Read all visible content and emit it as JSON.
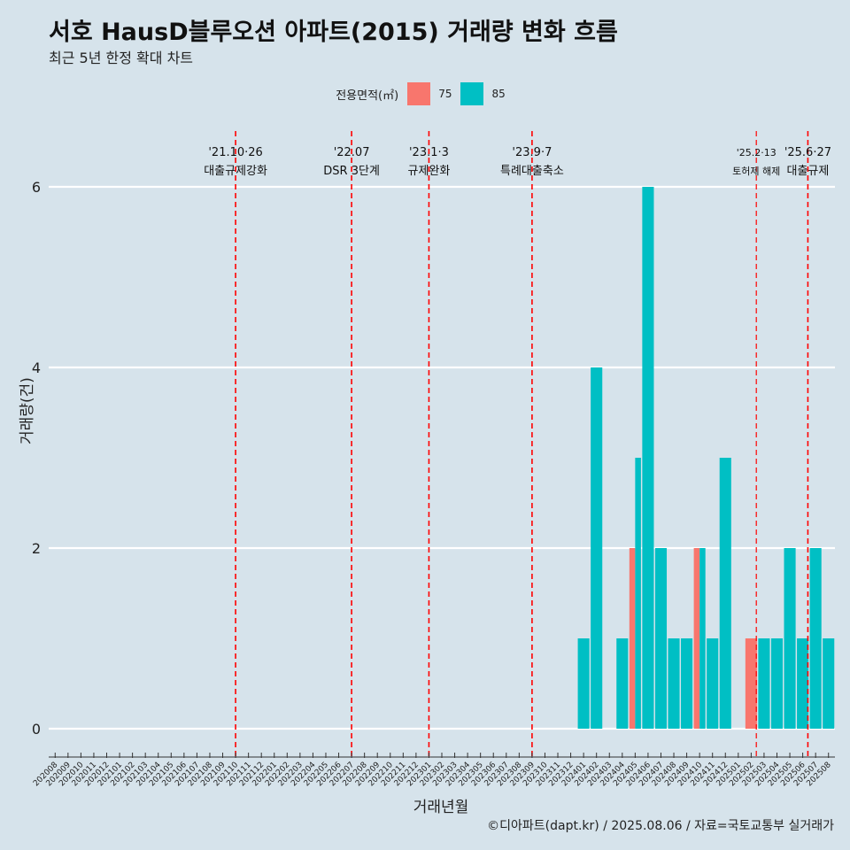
{
  "title": "서호 HausD블루오션 아파트(2015) 거래량 변화 흐름",
  "subtitle": "최근 5년 한정 확대 차트",
  "legend": {
    "title": "전용면적(㎡)",
    "items": [
      {
        "label": "75",
        "color": "#f8766d"
      },
      {
        "label": "85",
        "color": "#00bfc4"
      }
    ]
  },
  "caption": "©디아파트(dapt.kr) / 2025.08.06 / 자료=국토교통부 실거래가",
  "chart_data": {
    "type": "bar",
    "title": "서호 HausD블루오션 아파트(2015) 거래량 변화 흐름",
    "subtitle": "최근 5년 한정 확대 차트",
    "xlabel": "거래년월",
    "ylabel": "거래량(건)",
    "ylim": [
      -0.6,
      6.6
    ],
    "yticks": [
      0,
      2,
      4,
      6
    ],
    "categories": [
      "202008",
      "202009",
      "202010",
      "202011",
      "202012",
      "202101",
      "202102",
      "202103",
      "202104",
      "202105",
      "202106",
      "202107",
      "202108",
      "202109",
      "202110",
      "202111",
      "202112",
      "202201",
      "202202",
      "202203",
      "202204",
      "202205",
      "202206",
      "202207",
      "202208",
      "202209",
      "202210",
      "202211",
      "202212",
      "202301",
      "202302",
      "202303",
      "202304",
      "202305",
      "202306",
      "202307",
      "202308",
      "202309",
      "202310",
      "202311",
      "202312",
      "202401",
      "202402",
      "202403",
      "202404",
      "202405",
      "202406",
      "202407",
      "202408",
      "202409",
      "202410",
      "202411",
      "202412",
      "202501",
      "202502",
      "202503",
      "202504",
      "202505",
      "202506",
      "202507",
      "202508"
    ],
    "bars": [
      {
        "month": "202401",
        "series": "85",
        "value": 1,
        "pos": "full"
      },
      {
        "month": "202402",
        "series": "85",
        "value": 4,
        "pos": "full"
      },
      {
        "month": "202404",
        "series": "85",
        "value": 1,
        "pos": "full"
      },
      {
        "month": "202405",
        "series": "75",
        "value": 2,
        "pos": "left"
      },
      {
        "month": "202405",
        "series": "85",
        "value": 3,
        "pos": "right"
      },
      {
        "month": "202406",
        "series": "85",
        "value": 6,
        "pos": "full"
      },
      {
        "month": "202407",
        "series": "85",
        "value": 2,
        "pos": "full"
      },
      {
        "month": "202408",
        "series": "85",
        "value": 1,
        "pos": "full"
      },
      {
        "month": "202409",
        "series": "85",
        "value": 1,
        "pos": "full"
      },
      {
        "month": "202410",
        "series": "75",
        "value": 2,
        "pos": "left"
      },
      {
        "month": "202410",
        "series": "85",
        "value": 2,
        "pos": "right"
      },
      {
        "month": "202411",
        "series": "85",
        "value": 1,
        "pos": "full"
      },
      {
        "month": "202412",
        "series": "85",
        "value": 3,
        "pos": "full"
      },
      {
        "month": "202502",
        "series": "75",
        "value": 1,
        "pos": "full"
      },
      {
        "month": "202503",
        "series": "85",
        "value": 1,
        "pos": "full"
      },
      {
        "month": "202504",
        "series": "85",
        "value": 1,
        "pos": "full"
      },
      {
        "month": "202505",
        "series": "85",
        "value": 2,
        "pos": "full"
      },
      {
        "month": "202506",
        "series": "85",
        "value": 1,
        "pos": "full"
      },
      {
        "month": "202507",
        "series": "85",
        "value": 2,
        "pos": "full"
      },
      {
        "month": "202508",
        "series": "85",
        "value": 1,
        "pos": "full"
      }
    ],
    "events": [
      {
        "at": 14.0,
        "date": "'21.10·26",
        "label": "대출규제강화",
        "small": false
      },
      {
        "at": 23.0,
        "date": "'22.07",
        "label": "DSR 3단계",
        "small": false
      },
      {
        "at": 29.0,
        "date": "'23.1·3",
        "label": "규제완화",
        "small": false
      },
      {
        "at": 37.0,
        "date": "'23.9·7",
        "label": "특례대출축소",
        "small": false
      },
      {
        "at": 54.4,
        "date": "'25.2·13",
        "label": "토허제 해제",
        "small": true
      },
      {
        "at": 58.4,
        "date": "'25.6·27",
        "label": "대출규제",
        "small": false
      }
    ]
  }
}
